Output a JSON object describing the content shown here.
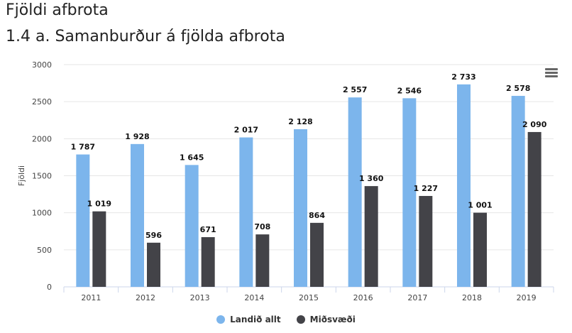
{
  "page": {
    "heading": "Fjöldi afbrota"
  },
  "chart_data": {
    "type": "bar",
    "title": "1.4 a. Samanburður á fjölda afbrota",
    "xlabel": "",
    "ylabel": "Fjöldi",
    "categories": [
      "2011",
      "2012",
      "2013",
      "2014",
      "2015",
      "2016",
      "2017",
      "2018",
      "2019"
    ],
    "series": [
      {
        "name": "Landið allt",
        "color": "#7cb5ec",
        "values": [
          1787,
          1928,
          1645,
          2017,
          2128,
          2557,
          2546,
          2733,
          2578
        ],
        "labels": [
          "1 787",
          "1 928",
          "1 645",
          "2 017",
          "2 128",
          "2 557",
          "2 546",
          "2 733",
          "2 578"
        ]
      },
      {
        "name": "Miðsvæði",
        "color": "#434348",
        "values": [
          1019,
          596,
          671,
          708,
          864,
          1360,
          1227,
          1001,
          2090
        ],
        "labels": [
          "1 019",
          "596",
          "671",
          "708",
          "864",
          "1 360",
          "1 227",
          "1 001",
          "2 090"
        ]
      }
    ],
    "ylim": [
      0,
      3000
    ],
    "yticks": [
      0,
      500,
      1000,
      1500,
      2000,
      2500,
      3000
    ],
    "grid": true,
    "legend_position": "bottom-center"
  },
  "menu": {
    "icon": "hamburger-menu-icon"
  }
}
